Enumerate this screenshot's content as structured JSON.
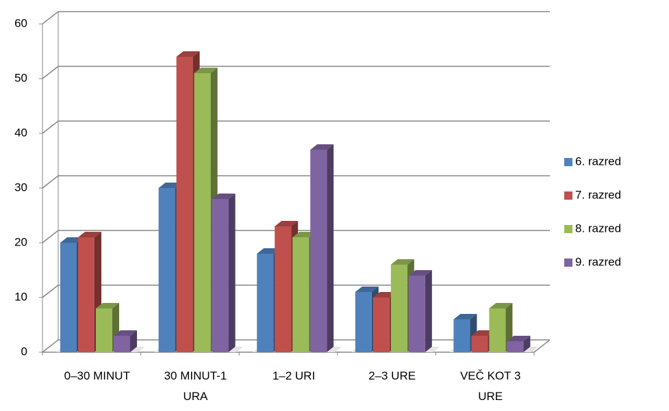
{
  "chart_data": {
    "type": "bar",
    "categories": [
      "0–30 MINUT",
      "30 MINUT-1 URA",
      "1–2 URI",
      "2–3 URE",
      "VEČ KOT 3 URE"
    ],
    "series": [
      {
        "name": "6. razred",
        "color": "#4f81bd",
        "values": [
          20,
          30,
          18,
          11,
          6
        ]
      },
      {
        "name": "7. razred",
        "color": "#c0504d",
        "values": [
          21,
          54,
          23,
          10,
          3
        ]
      },
      {
        "name": "8. razred",
        "color": "#9bbb59",
        "values": [
          8,
          51,
          21,
          16,
          8
        ]
      },
      {
        "name": "9. razred",
        "color": "#8064a2",
        "values": [
          3,
          28,
          37,
          14,
          2
        ]
      }
    ],
    "ylim": [
      0,
      60
    ],
    "yticks": [
      0,
      10,
      20,
      30,
      40,
      50,
      60
    ],
    "grid": true,
    "legend": "right"
  }
}
